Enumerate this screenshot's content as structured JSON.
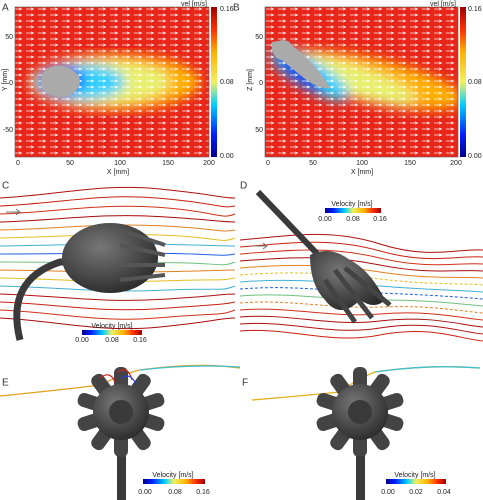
{
  "panels": [
    {
      "label": "A",
      "colorbar": {
        "title": "vel [m/s]",
        "ticks": [
          "0.16",
          "0.08",
          "0.00"
        ]
      },
      "x_axis": {
        "title": "X [mm]",
        "ticks": [
          "0",
          "50",
          "100",
          "150",
          "200"
        ]
      },
      "y_axis": {
        "title": "Y [mm]",
        "ticks": [
          "50",
          "0",
          "-50"
        ]
      }
    },
    {
      "label": "B",
      "colorbar": {
        "title": "vel [m/s]",
        "ticks": [
          "0.16",
          "0.08",
          "0.00"
        ]
      },
      "x_axis": {
        "title": "X [mm]",
        "ticks": [
          "0",
          "50",
          "100",
          "150",
          "200"
        ]
      },
      "y_axis": {
        "title": "Z [mm]",
        "ticks": [
          "50",
          "0",
          "50"
        ]
      }
    },
    {
      "label": "C",
      "colorbar": {
        "title": "Velocity [m/s]",
        "ticks": [
          "0.00",
          "0.08",
          "0.16"
        ]
      }
    },
    {
      "label": "D",
      "colorbar": {
        "title": "Velocity [m/s]",
        "ticks": [
          "0.00",
          "0.08",
          "0.16"
        ]
      }
    },
    {
      "label": "E",
      "colorbar": {
        "title": "Velocity [m/s]",
        "ticks": [
          "0.00",
          "0.08",
          "0.16"
        ]
      }
    },
    {
      "label": "F",
      "colorbar": {
        "title": "Velocity [m/s]",
        "ticks": [
          "0.00",
          "0.02",
          "0.04"
        ]
      }
    }
  ]
}
